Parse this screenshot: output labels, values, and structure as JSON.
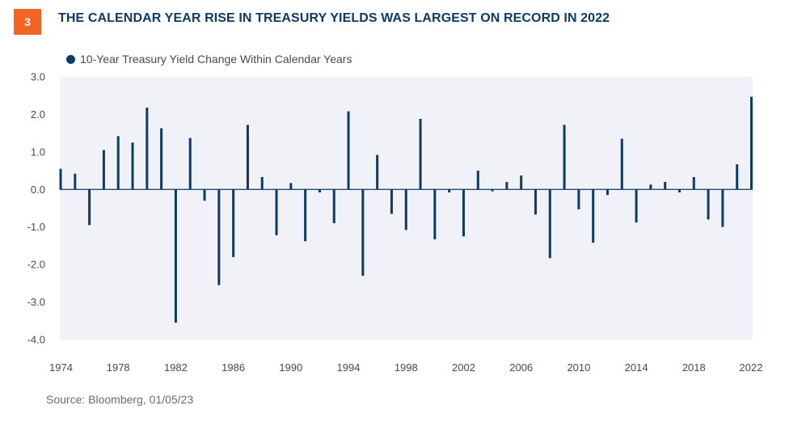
{
  "header": {
    "badge": "3",
    "title": "THE CALENDAR YEAR RISE IN TREASURY YIELDS WAS LARGEST ON RECORD IN 2022"
  },
  "legend": {
    "label": "10-Year Treasury Yield Change Within Calendar Years"
  },
  "source": "Source: Bloomberg, 01/05/23",
  "colors": {
    "bar": "#0d3b66",
    "badge": "#f26522",
    "plot_background": "#f1f2f7"
  },
  "chart_data": {
    "type": "bar",
    "title": "",
    "xlabel": "",
    "ylabel": "",
    "ylim": [
      -4.0,
      3.0
    ],
    "yticks": [
      "3.0",
      "2.0",
      "1.0",
      "0.0",
      "-1.0",
      "-2.0",
      "-3.0",
      "-4.0"
    ],
    "ytick_values": [
      3,
      2,
      1,
      0,
      -1,
      -2,
      -3,
      -4
    ],
    "xticks": [
      "1974",
      "1978",
      "1982",
      "1986",
      "1990",
      "1994",
      "1998",
      "2002",
      "2006",
      "2010",
      "2014",
      "2018",
      "2022"
    ],
    "legend_position": "top-left",
    "grid": false,
    "categories": [
      1974,
      1975,
      1976,
      1977,
      1978,
      1979,
      1980,
      1981,
      1982,
      1983,
      1984,
      1985,
      1986,
      1987,
      1988,
      1989,
      1990,
      1991,
      1992,
      1993,
      1994,
      1995,
      1996,
      1997,
      1998,
      1999,
      2000,
      2001,
      2002,
      2003,
      2004,
      2005,
      2006,
      2007,
      2008,
      2009,
      2010,
      2011,
      2012,
      2013,
      2014,
      2015,
      2016,
      2017,
      2018,
      2019,
      2020,
      2021,
      2022
    ],
    "series": [
      {
        "name": "10-Year Treasury Yield Change Within Calendar Years",
        "values": [
          0.55,
          0.42,
          -0.95,
          1.05,
          1.42,
          1.25,
          2.18,
          1.63,
          -3.55,
          1.37,
          -0.3,
          -2.55,
          -1.8,
          1.72,
          0.33,
          -1.22,
          0.17,
          -1.38,
          -0.08,
          -0.9,
          2.08,
          -2.3,
          0.92,
          -0.65,
          -1.08,
          1.88,
          -1.33,
          -0.08,
          -1.25,
          0.5,
          -0.05,
          0.2,
          0.37,
          -0.67,
          -1.83,
          1.72,
          -0.53,
          -1.42,
          -0.15,
          1.35,
          -0.88,
          0.13,
          0.2,
          -0.08,
          0.33,
          -0.8,
          -1.0,
          0.67,
          2.47
        ]
      }
    ]
  }
}
